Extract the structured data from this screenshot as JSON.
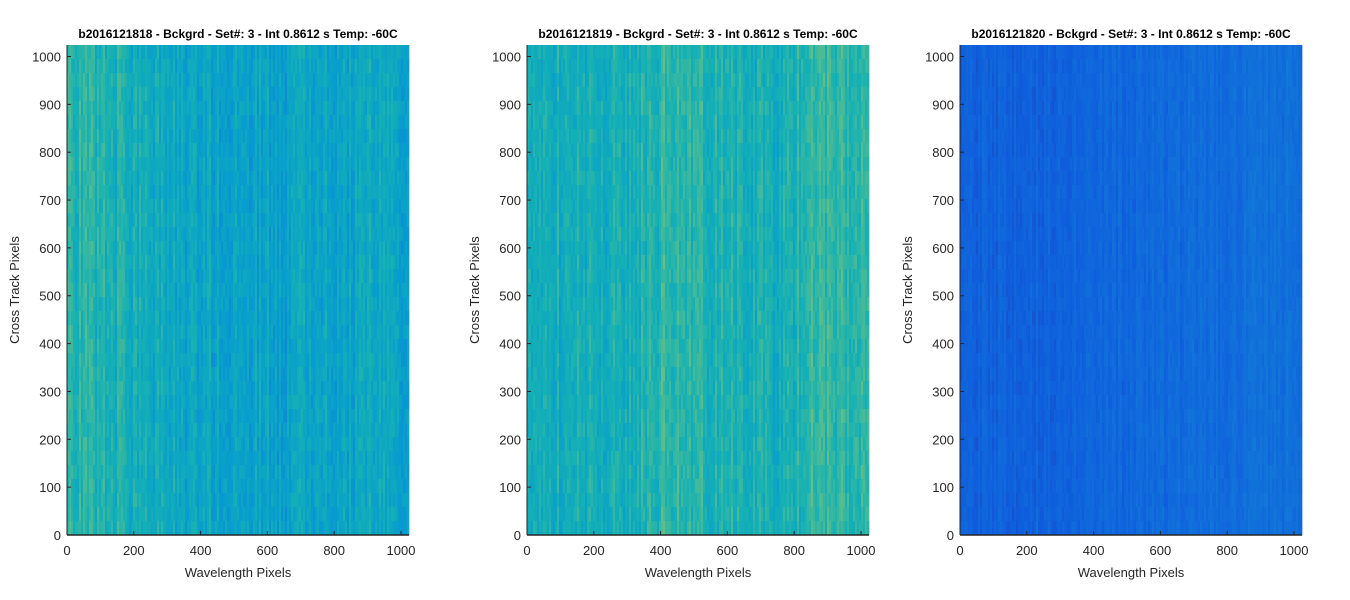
{
  "chart_data": [
    {
      "type": "heatmap",
      "title": "b2016121818 - Bckgrd - Set#: 3 - Int 0.8612 s Temp: -60C",
      "xlabel": "Wavelength Pixels",
      "ylabel": "Cross Track Pixels",
      "xlim": [
        0,
        1024
      ],
      "ylim": [
        0,
        1024
      ],
      "xticks": [
        "0",
        "200",
        "400",
        "600",
        "800",
        "1000"
      ],
      "yticks": [
        "0",
        "100",
        "200",
        "300",
        "400",
        "500",
        "600",
        "700",
        "800",
        "900",
        "1000"
      ],
      "colormap": "parula",
      "relative_level_by_wavelength": {
        "x": [
          0,
          150,
          300,
          500,
          700,
          900,
          1024
        ],
        "level": [
          0.58,
          0.55,
          0.48,
          0.44,
          0.45,
          0.47,
          0.46
        ]
      }
    },
    {
      "type": "heatmap",
      "title": "b2016121819 - Bckgrd - Set#: 3 - Int 0.8612 s Temp: -60C",
      "xlabel": "Wavelength Pixels",
      "ylabel": "Cross Track Pixels",
      "xlim": [
        0,
        1024
      ],
      "ylim": [
        0,
        1024
      ],
      "xticks": [
        "0",
        "200",
        "400",
        "600",
        "800",
        "1000"
      ],
      "yticks": [
        "0",
        "100",
        "200",
        "300",
        "400",
        "500",
        "600",
        "700",
        "800",
        "900",
        "1000"
      ],
      "colormap": "parula",
      "relative_level_by_wavelength": {
        "x": [
          0,
          150,
          300,
          450,
          600,
          750,
          880,
          1024
        ],
        "level": [
          0.55,
          0.52,
          0.54,
          0.62,
          0.55,
          0.52,
          0.63,
          0.58
        ]
      }
    },
    {
      "type": "heatmap",
      "title": "b2016121820 - Bckgrd - Set#: 3 - Int 0.8612 s Temp: -60C",
      "xlabel": "Wavelength Pixels",
      "ylabel": "Cross Track Pixels",
      "xlim": [
        0,
        1024
      ],
      "ylim": [
        0,
        1024
      ],
      "xticks": [
        "0",
        "200",
        "400",
        "600",
        "800",
        "1000"
      ],
      "yticks": [
        "0",
        "100",
        "200",
        "300",
        "400",
        "500",
        "600",
        "700",
        "800",
        "900",
        "1000"
      ],
      "colormap": "parula",
      "relative_level_by_wavelength": {
        "x": [
          0,
          300,
          600,
          900,
          1024
        ],
        "level": [
          0.14,
          0.15,
          0.17,
          0.19,
          0.2
        ]
      }
    }
  ]
}
